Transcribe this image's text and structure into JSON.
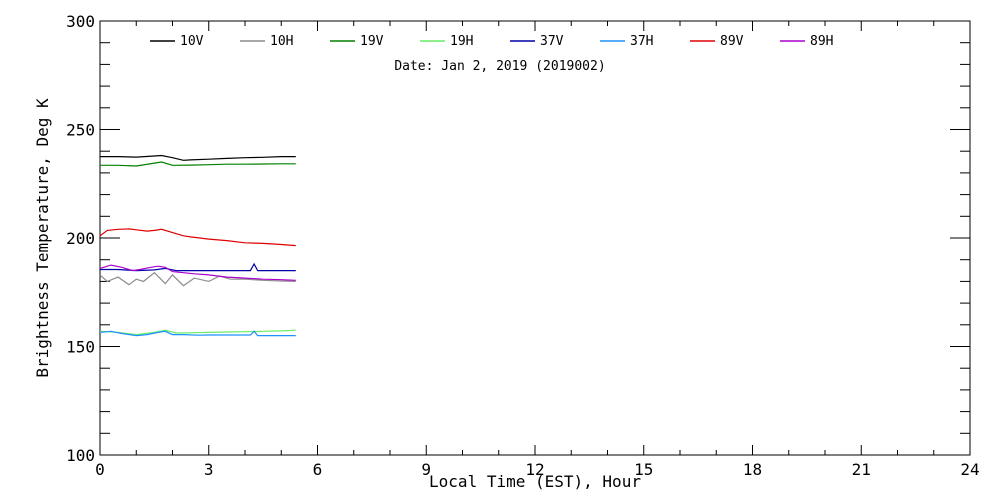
{
  "chart_data": {
    "type": "line",
    "subtitle": "Date: Jan  2, 2019 (2019002)",
    "xlabel": "Local Time (EST), Hour",
    "ylabel": "Brightness Temperature, Deg K",
    "xlim": [
      0,
      24
    ],
    "ylim": [
      100,
      300
    ],
    "xticks": [
      0,
      3,
      6,
      9,
      12,
      15,
      18,
      21,
      24
    ],
    "yticks": [
      100,
      150,
      200,
      250,
      300
    ],
    "grid": false,
    "legend_position": "top",
    "series": [
      {
        "name": "10V",
        "color": "#000000",
        "x": [
          0,
          0.5,
          1,
          1.5,
          1.7,
          2,
          2.3,
          2.5,
          3,
          3.5,
          4,
          4.5,
          5,
          5.4
        ],
        "y": [
          237.5,
          237.5,
          237.3,
          237.8,
          238,
          237,
          235.8,
          236,
          236.3,
          236.7,
          237,
          237.2,
          237.5,
          237.5
        ]
      },
      {
        "name": "10H",
        "color": "#8c8c8c",
        "x": [
          0,
          0.2,
          0.5,
          0.8,
          1,
          1.2,
          1.5,
          1.8,
          2,
          2.3,
          2.6,
          3,
          3.3,
          3.6,
          4,
          4.5,
          5,
          5.4
        ],
        "y": [
          183,
          180,
          182,
          178.5,
          181,
          180,
          184,
          179,
          183,
          178,
          181.5,
          180,
          182.5,
          181,
          181,
          180.5,
          180.2,
          180
        ]
      },
      {
        "name": "19V",
        "color": "#008000",
        "x": [
          0,
          0.5,
          1,
          1.5,
          1.7,
          2,
          2.5,
          3,
          3.5,
          4,
          4.5,
          5,
          5.4
        ],
        "y": [
          233.5,
          233.5,
          233.2,
          234.5,
          235,
          233.5,
          233.6,
          233.8,
          234,
          234,
          234.1,
          234.2,
          234.2
        ]
      },
      {
        "name": "19H",
        "color": "#66ee66",
        "x": [
          0,
          0.5,
          1,
          1.5,
          1.8,
          2.1,
          2.5,
          3,
          3.5,
          4,
          4.5,
          5,
          5.4
        ],
        "y": [
          157,
          156.5,
          155.5,
          156.5,
          157.5,
          156.2,
          156.3,
          156.5,
          156.7,
          156.8,
          157,
          157.2,
          157.5
        ]
      },
      {
        "name": "37V",
        "color": "#0000aa",
        "x": [
          0,
          0.5,
          1,
          1.5,
          1.8,
          2.1,
          2.5,
          3,
          3.5,
          4,
          4.15,
          4.25,
          4.35,
          4.6,
          5,
          5.4
        ],
        "y": [
          185.5,
          185.5,
          185,
          185.3,
          186,
          185,
          185,
          185,
          185,
          185,
          185,
          188,
          185,
          185,
          185,
          185
        ]
      },
      {
        "name": "37H",
        "color": "#1e90ff",
        "x": [
          0,
          0.3,
          0.6,
          1,
          1.3,
          1.6,
          1.8,
          2,
          2.3,
          2.7,
          3,
          3.5,
          4,
          4.15,
          4.25,
          4.35,
          4.6,
          5,
          5.4
        ],
        "y": [
          156.5,
          157,
          156,
          155,
          155.5,
          156.5,
          157,
          155.5,
          155.5,
          155.2,
          155.3,
          155.3,
          155.3,
          155.3,
          157,
          155,
          155,
          155,
          155
        ]
      },
      {
        "name": "89V",
        "color": "#dd0000",
        "x": [
          0,
          0.2,
          0.5,
          0.8,
          1,
          1.3,
          1.5,
          1.7,
          2,
          2.3,
          2.5,
          3,
          3.5,
          4,
          4.5,
          5,
          5.4
        ],
        "y": [
          201,
          203.5,
          204,
          204.2,
          203.8,
          203.2,
          203.5,
          204,
          202.5,
          201,
          200.5,
          199.5,
          198.8,
          197.8,
          197.5,
          197,
          196.5
        ]
      },
      {
        "name": "89H",
        "color": "#aa00cc",
        "x": [
          0,
          0.3,
          0.6,
          0.9,
          1.1,
          1.4,
          1.6,
          1.8,
          2,
          2.3,
          2.6,
          3,
          3.5,
          4,
          4.5,
          5,
          5.4
        ],
        "y": [
          186,
          187.5,
          186.5,
          185,
          185.5,
          186.5,
          187,
          186.5,
          184.5,
          184,
          183.5,
          183,
          182,
          181.5,
          181,
          180.8,
          180.5
        ]
      }
    ]
  }
}
